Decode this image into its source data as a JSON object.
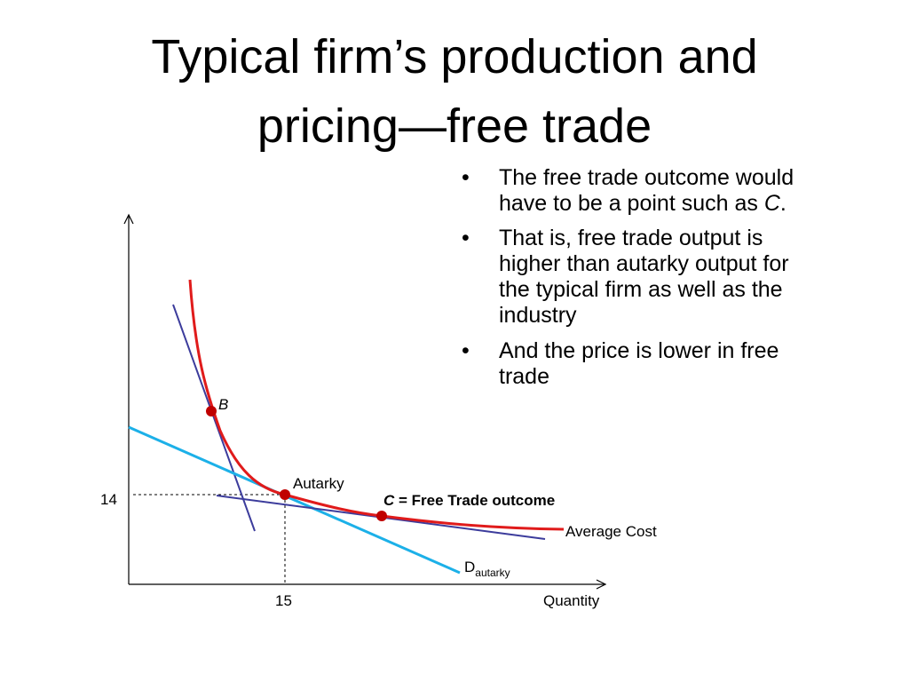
{
  "title": {
    "lines": [
      "Typical firm’s production and",
      "pricing—free trade"
    ]
  },
  "bullets": [
    {
      "parts": [
        "The free trade outcome would",
        "have to be a point such as ",
        "C",
        "."
      ]
    },
    {
      "lines": [
        "That is, free trade output is",
        "higher than autarky output for",
        "the typical firm as well as the",
        "industry"
      ]
    },
    {
      "lines": [
        "And the price is lower in free",
        "trade"
      ]
    }
  ],
  "bullet_symbol": "•",
  "diagram": {
    "point_b": "B",
    "point_autarky": "Autarky",
    "point_c": {
      "letter": "C",
      "text": " = Free Trade outcome"
    },
    "curve_average_cost": "Average Cost",
    "demand": {
      "letter": "D",
      "subscript": "autarky"
    },
    "price_label": "14",
    "quantity_label": "15",
    "x_axis": "Quantity"
  }
}
